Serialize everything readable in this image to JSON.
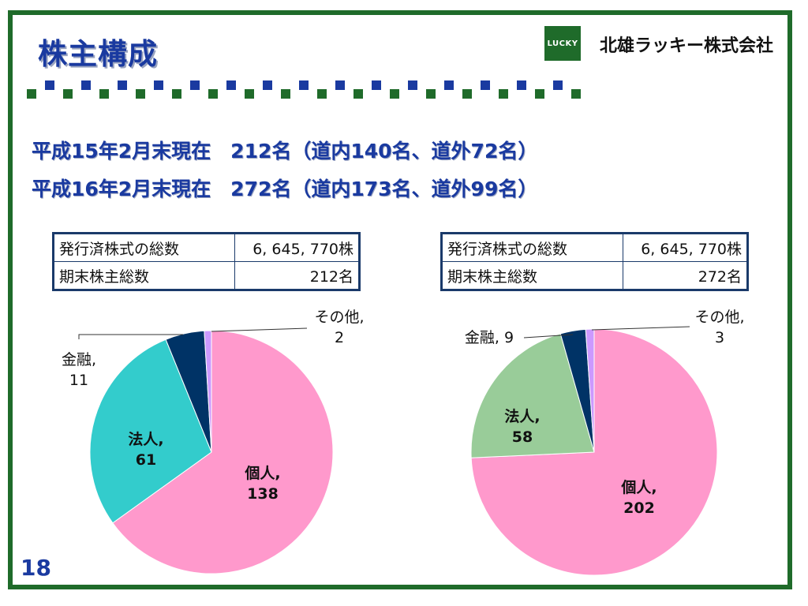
{
  "title": "株主構成",
  "logo_text": "LUCKY",
  "company": "北雄ラッキー株式会社",
  "summary": [
    "平成15年2月末現在　212名（道内140名、道外72名）",
    "平成16年2月末現在　272名（道内173名、道外99名）"
  ],
  "tables": [
    {
      "rows": [
        {
          "label": "発行済株式の総数",
          "value": "6, 645, 770株"
        },
        {
          "label": "期末株主総数",
          "value": "212名"
        }
      ]
    },
    {
      "rows": [
        {
          "label": "発行済株式の総数",
          "value": "6, 645, 770株"
        },
        {
          "label": "期末株主総数",
          "value": "272名"
        }
      ]
    }
  ],
  "page_number": "18",
  "colors": {
    "frame": "#1f6b2a",
    "title": "#1a3aa0"
  },
  "chart_data": [
    {
      "type": "pie",
      "slices": [
        {
          "name": "個人",
          "value": 138,
          "color": "#ff99cc"
        },
        {
          "name": "法人",
          "value": 61,
          "color": "#33cccc"
        },
        {
          "name": "金融",
          "value": 11,
          "color": "#003366"
        },
        {
          "name": "その他",
          "value": 2,
          "color": "#cc99ff"
        }
      ],
      "labels": [
        {
          "l1": "個人,",
          "l2": "138"
        },
        {
          "l1": "法人,",
          "l2": "61"
        },
        {
          "l1": "金融,",
          "l2": "11"
        },
        {
          "l1": "その他,",
          "l2": "2"
        }
      ]
    },
    {
      "type": "pie",
      "slices": [
        {
          "name": "個人",
          "value": 202,
          "color": "#ff99cc"
        },
        {
          "name": "法人",
          "value": 58,
          "color": "#99cc99"
        },
        {
          "name": "金融",
          "value": 9,
          "color": "#003366"
        },
        {
          "name": "その他",
          "value": 3,
          "color": "#cc99ff"
        }
      ],
      "labels": [
        {
          "l1": "個人,",
          "l2": "202"
        },
        {
          "l1": "法人,",
          "l2": "58"
        },
        {
          "l1": "金融, 9",
          "l2": ""
        },
        {
          "l1": "その他,",
          "l2": "3"
        }
      ]
    }
  ]
}
